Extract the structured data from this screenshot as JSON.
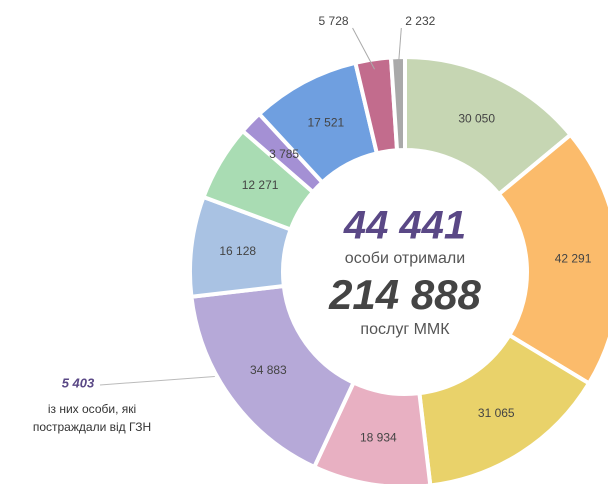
{
  "chart_data": {
    "type": "donut",
    "categories": [
      null,
      null,
      null,
      null,
      null,
      null,
      null,
      null,
      null,
      null,
      null
    ],
    "values": [
      30050,
      42291,
      31065,
      18934,
      34883,
      16128,
      12271,
      3785,
      17521,
      5728,
      2232
    ],
    "value_labels": [
      "30 050",
      "42 291",
      "31 065",
      "18 934",
      "34 883",
      "16 128",
      "12 271",
      "3 785",
      "17 521",
      "5 728",
      "2 232"
    ],
    "colors": [
      "#c6d6b3",
      "#fbbb6b",
      "#e9d26a",
      "#e8b0c2",
      "#b6a9d8",
      "#a9c2e3",
      "#a9dcb3",
      "#a490d4",
      "#6f9fe0",
      "#c26c8d",
      "#a9a9a9"
    ],
    "center_text": [
      "44 441",
      "особи отримали",
      "214 888",
      "послуг ММК"
    ],
    "annotation": {
      "value_label": "5 403",
      "text": [
        "із них особи, які",
        "постраждали від ГЗН"
      ]
    }
  }
}
